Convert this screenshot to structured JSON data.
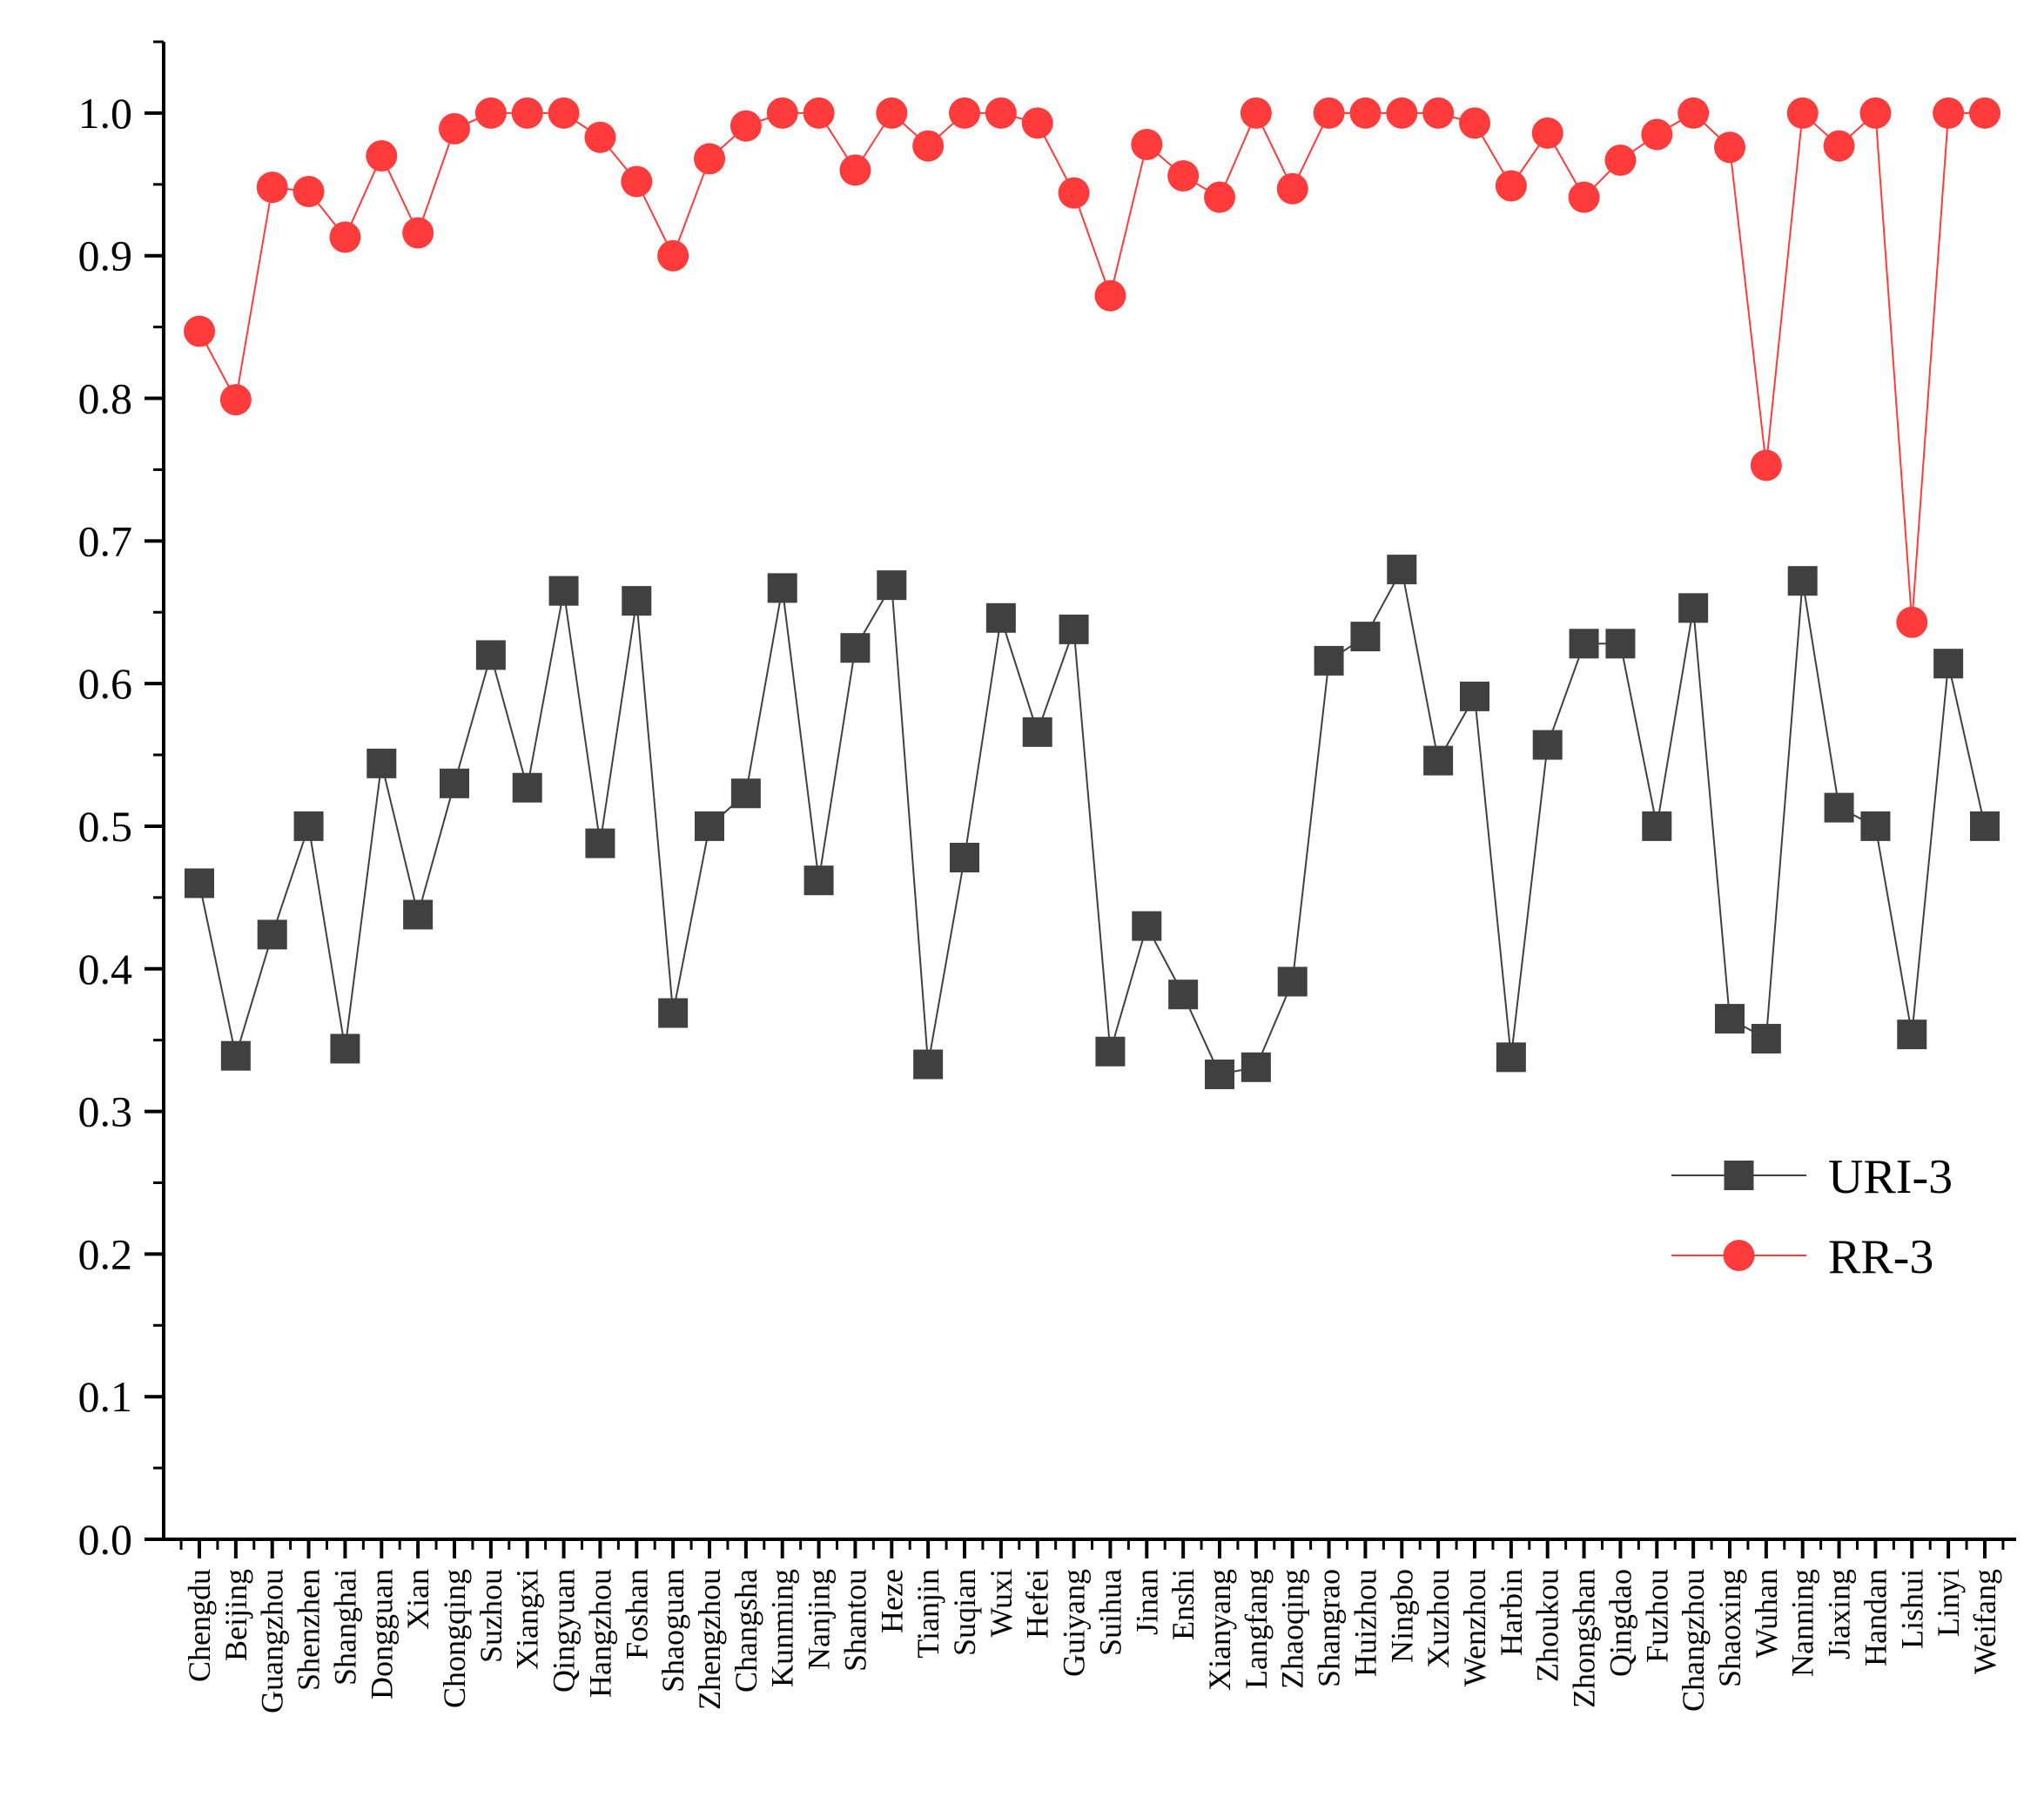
{
  "chart_data": {
    "type": "line",
    "title": "",
    "xlabel": "",
    "ylabel": "",
    "ylim": [
      0,
      1.05
    ],
    "yticks": [
      "0.0",
      "0.1",
      "0.2",
      "0.3",
      "0.4",
      "0.5",
      "0.6",
      "0.7",
      "0.8",
      "0.9",
      "1.0"
    ],
    "grid": false,
    "legend_position": "bottom-right",
    "categories": [
      "Chengdu",
      "Beijing",
      "Guangzhou",
      "Shenzhen",
      "Shanghai",
      "Dongguan",
      "Xian",
      "Chongqing",
      "Suzhou",
      "Xiangxi",
      "Qingyuan",
      "Hangzhou",
      "Foshan",
      "Shaoguan",
      "Zhengzhou",
      "Changsha",
      "Kunming",
      "Nanjing",
      "Shantou",
      "Heze",
      "Tianjin",
      "Suqian",
      "Wuxi",
      "Hefei",
      "Guiyang",
      "Suihua",
      "Jinan",
      "Enshi",
      "Xianyang",
      "Langfang",
      "Zhaoqing",
      "Shangrao",
      "Huizhou",
      "Ningbo",
      "Xuzhou",
      "Wenzhou",
      "Harbin",
      "Zhoukou",
      "Zhongshan",
      "Qingdao",
      "Fuzhou",
      "Changzhou",
      "Shaoxing",
      "Wuhan",
      "Nanning",
      "Jiaxing",
      "Handan",
      "Lishui",
      "Linyi",
      "Weifang"
    ],
    "series": [
      {
        "name": "URI-3",
        "color": "#404040",
        "marker": "square",
        "values": [
          0.46,
          0.339,
          0.424,
          0.5,
          0.344,
          0.544,
          0.438,
          0.53,
          0.62,
          0.527,
          0.665,
          0.488,
          0.658,
          0.369,
          0.5,
          0.523,
          0.667,
          0.462,
          0.625,
          0.669,
          0.333,
          0.478,
          0.646,
          0.566,
          0.638,
          0.342,
          0.43,
          0.382,
          0.326,
          0.331,
          0.391,
          0.616,
          0.633,
          0.68,
          0.546,
          0.591,
          0.338,
          0.557,
          0.628,
          0.628,
          0.5,
          0.653,
          0.365,
          0.351,
          0.672,
          0.513,
          0.5,
          0.354,
          0.614,
          0.5
        ]
      },
      {
        "name": "RR-3",
        "color": "#ff3b3b",
        "marker": "circle",
        "values": [
          0.847,
          0.799,
          0.948,
          0.945,
          0.913,
          0.97,
          0.916,
          0.989,
          1.0,
          1.0,
          1.0,
          0.983,
          0.952,
          0.9,
          0.968,
          0.991,
          1.0,
          1.0,
          0.96,
          1.0,
          0.977,
          1.0,
          1.0,
          0.993,
          0.944,
          0.872,
          0.978,
          0.956,
          0.941,
          1.0,
          0.947,
          1.0,
          1.0,
          1.0,
          1.0,
          0.993,
          0.949,
          0.986,
          0.941,
          0.967,
          0.985,
          1.0,
          0.976,
          0.753,
          1.0,
          0.977,
          1.0,
          0.643,
          1.0,
          1.0
        ]
      }
    ]
  }
}
